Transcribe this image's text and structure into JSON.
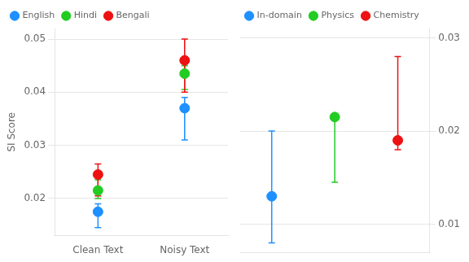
{
  "chart_data": [
    {
      "type": "scatter",
      "y_label": "SI Score",
      "categories": [
        "Clean Text",
        "Noisy Text"
      ],
      "ylim": [
        0.013,
        0.052
      ],
      "yticks": [
        0.02,
        0.03,
        0.04,
        0.05
      ],
      "grid": true,
      "legend": "upper left",
      "marker": "circle",
      "series": [
        {
          "name": "English",
          "color": "#1E90FF",
          "values": [
            0.0175,
            0.037
          ],
          "yerr_lo": [
            0.003,
            0.006
          ],
          "yerr_hi": [
            0.0015,
            0.002
          ]
        },
        {
          "name": "Hindi",
          "color": "#22CC22",
          "values": [
            0.0215,
            0.0435
          ],
          "yerr_lo": [
            0.0015,
            0.003
          ],
          "yerr_hi": [
            0.002,
            0.0015
          ]
        },
        {
          "name": "Bengali",
          "color": "#EE1111",
          "values": [
            0.0245,
            0.046
          ],
          "yerr_lo": [
            0.004,
            0.006
          ],
          "yerr_hi": [
            0.002,
            0.004
          ]
        }
      ]
    },
    {
      "type": "scatter",
      "categories": [
        null,
        null,
        null
      ],
      "ylim": [
        0.007,
        0.031
      ],
      "yticks": [
        0.01,
        0.02,
        0.03
      ],
      "grid": true,
      "legend": "upper left",
      "marker": "diamond",
      "tick_labels": "y",
      "series": [
        {
          "name": "In-domain",
          "color": "#1E90FF",
          "values": [
            0.013,
            null,
            null
          ],
          "yerr_lo": [
            0.005,
            null,
            null
          ],
          "yerr_hi": [
            0.007,
            null,
            null
          ]
        },
        {
          "name": "Physics",
          "color": "#22CC22",
          "values": [
            null,
            0.0215,
            null
          ],
          "yerr_lo": [
            null,
            0.007,
            null
          ],
          "yerr_hi": [
            null,
            0.0,
            null
          ]
        },
        {
          "name": "Chemistry",
          "color": "#EE1111",
          "values": [
            null,
            null,
            0.019
          ],
          "yerr_lo": [
            null,
            null,
            0.001
          ],
          "yerr_hi": [
            null,
            null,
            0.009
          ]
        }
      ]
    }
  ]
}
